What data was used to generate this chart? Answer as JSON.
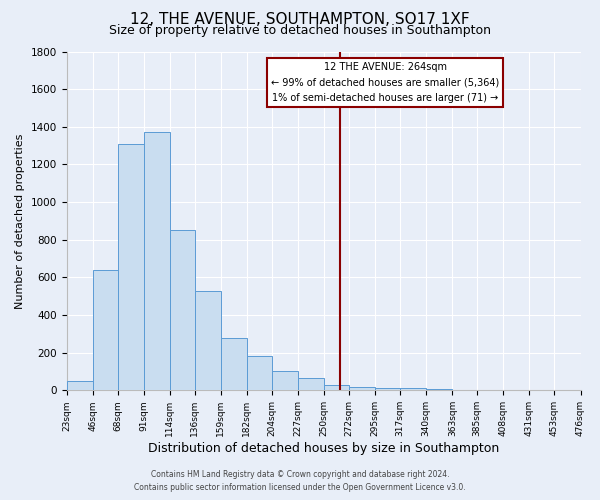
{
  "title": "12, THE AVENUE, SOUTHAMPTON, SO17 1XF",
  "subtitle": "Size of property relative to detached houses in Southampton",
  "xlabel": "Distribution of detached houses by size in Southampton",
  "ylabel": "Number of detached properties",
  "bar_heights": [
    50,
    640,
    1310,
    1370,
    850,
    530,
    280,
    180,
    105,
    65,
    30,
    20,
    15,
    10,
    5,
    3,
    2,
    1,
    0,
    0
  ],
  "bin_labels": [
    "23sqm",
    "46sqm",
    "68sqm",
    "91sqm",
    "114sqm",
    "136sqm",
    "159sqm",
    "182sqm",
    "204sqm",
    "227sqm",
    "250sqm",
    "272sqm",
    "295sqm",
    "317sqm",
    "340sqm",
    "363sqm",
    "385sqm",
    "408sqm",
    "431sqm",
    "453sqm",
    "476sqm"
  ],
  "bin_edges": [
    23,
    46,
    68,
    91,
    114,
    136,
    159,
    182,
    204,
    227,
    250,
    272,
    295,
    317,
    340,
    363,
    385,
    408,
    431,
    453,
    476
  ],
  "bar_color": "#c9ddf0",
  "bar_edge_color": "#5b9bd5",
  "red_line_x": 264,
  "ylim": [
    0,
    1800
  ],
  "yticks": [
    0,
    200,
    400,
    600,
    800,
    1000,
    1200,
    1400,
    1600,
    1800
  ],
  "annotation_title": "12 THE AVENUE: 264sqm",
  "annotation_line1": "← 99% of detached houses are smaller (5,364)",
  "annotation_line2": "1% of semi-detached houses are larger (71) →",
  "footer1": "Contains HM Land Registry data © Crown copyright and database right 2024.",
  "footer2": "Contains public sector information licensed under the Open Government Licence v3.0.",
  "background_color": "#e8eef8",
  "grid_color": "#ffffff",
  "title_fontsize": 11,
  "subtitle_fontsize": 9,
  "xlabel_fontsize": 9,
  "ylabel_fontsize": 8
}
